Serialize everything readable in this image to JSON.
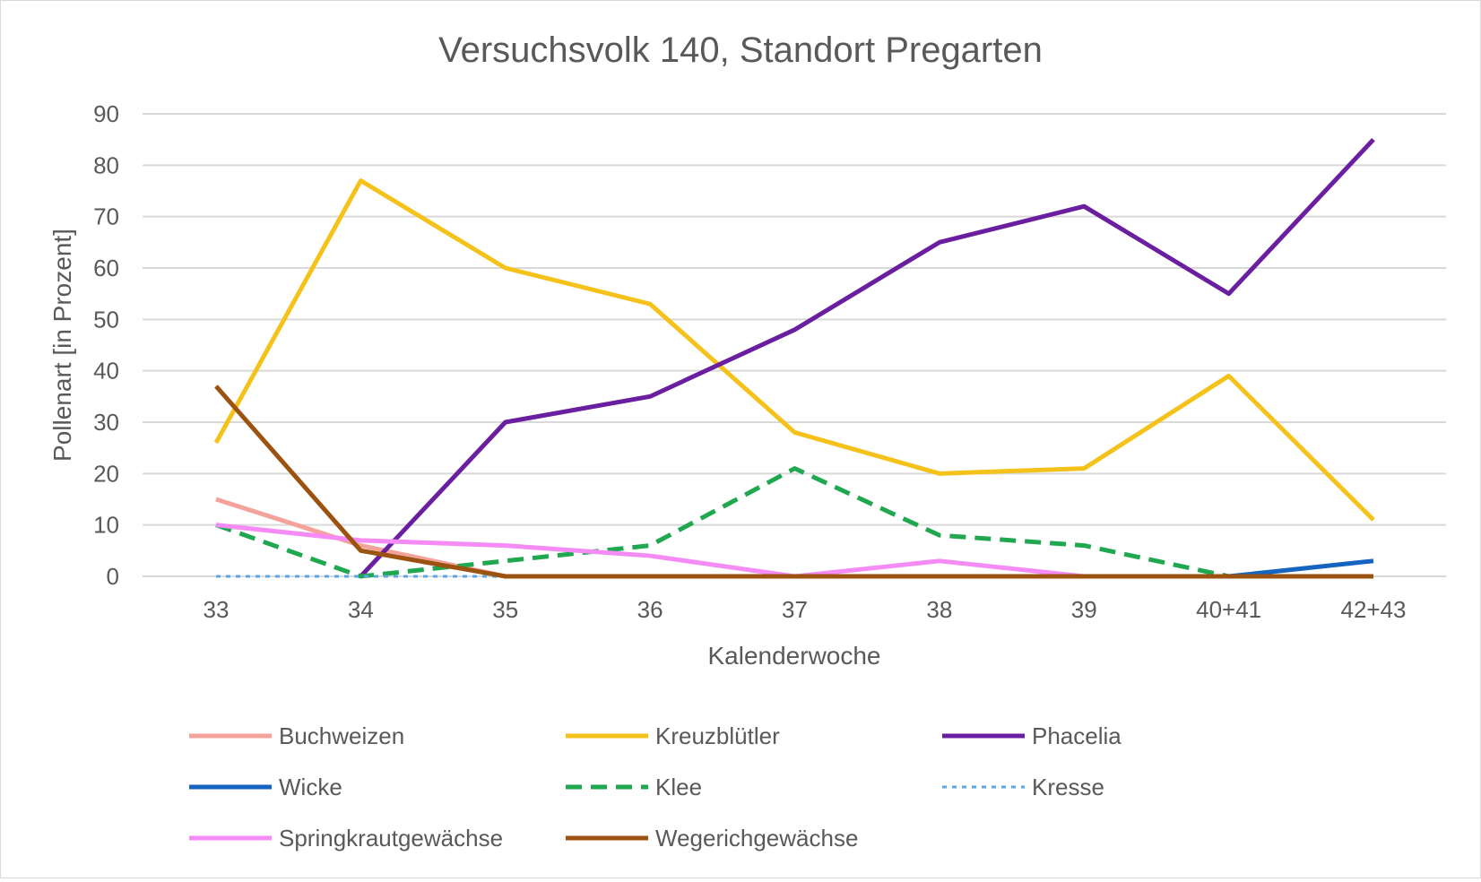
{
  "chart_data": {
    "type": "line",
    "title": "Versuchsvolk 140, Standort Pregarten",
    "xlabel": "Kalenderwoche",
    "ylabel": "Pollenart [in Prozent]",
    "categories": [
      "33",
      "34",
      "35",
      "36",
      "37",
      "38",
      "39",
      "40+41",
      "42+43"
    ],
    "ylim": [
      0,
      90
    ],
    "yticks": [
      0,
      10,
      20,
      30,
      40,
      50,
      60,
      70,
      80,
      90
    ],
    "grid": true,
    "legend": "bottom",
    "series": [
      {
        "name": "Buchweizen",
        "color": "#f4a39a",
        "dash": "solid",
        "values": [
          15,
          6,
          0,
          0,
          0,
          0,
          0,
          0,
          0
        ]
      },
      {
        "name": "Kreuzblütler",
        "color": "#f5c21b",
        "dash": "solid",
        "values": [
          26,
          77,
          60,
          53,
          28,
          20,
          21,
          39,
          11
        ]
      },
      {
        "name": "Phacelia",
        "color": "#6a1fa0",
        "dash": "solid",
        "values": [
          null,
          0,
          30,
          35,
          48,
          65,
          72,
          55,
          85
        ]
      },
      {
        "name": "Wicke",
        "color": "#1565c0",
        "dash": "solid",
        "values": [
          null,
          null,
          null,
          null,
          null,
          null,
          null,
          0,
          3
        ]
      },
      {
        "name": "Klee",
        "color": "#1fa84f",
        "dash": "dashed",
        "values": [
          10,
          0,
          3,
          6,
          21,
          8,
          6,
          0,
          null
        ]
      },
      {
        "name": "Kresse",
        "color": "#5aa6e6",
        "dash": "dotted",
        "values": [
          0,
          0,
          0,
          null,
          null,
          null,
          null,
          null,
          null
        ]
      },
      {
        "name": "Springkrautgewächse",
        "color": "#f58cf5",
        "dash": "solid",
        "values": [
          10,
          7,
          6,
          4,
          0,
          3,
          0,
          null,
          null
        ]
      },
      {
        "name": "Wegerichgewächse",
        "color": "#9c5210",
        "dash": "solid",
        "values": [
          37,
          5,
          0,
          0,
          0,
          0,
          0,
          0,
          0
        ]
      }
    ]
  }
}
